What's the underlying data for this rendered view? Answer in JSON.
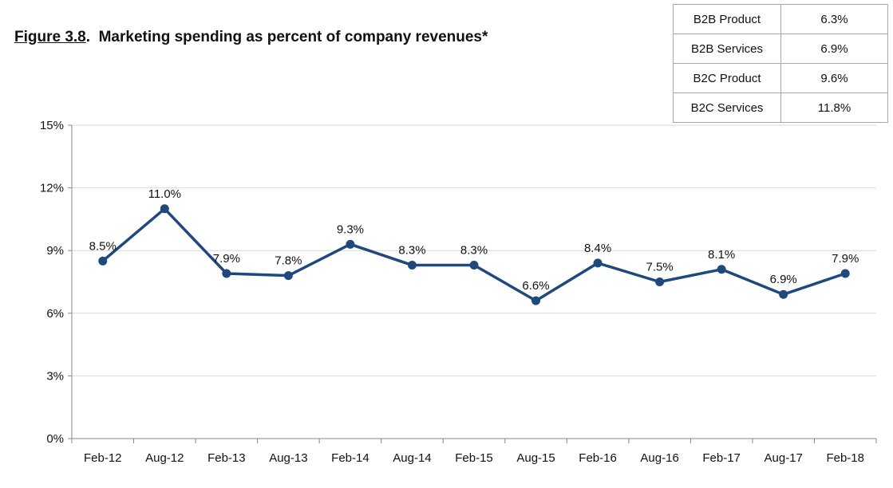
{
  "title": {
    "figure_number": "Figure 3.8",
    "separator": ".",
    "text": "Marketing spending as percent of company revenues*"
  },
  "summary_table": [
    {
      "label": "B2B Product",
      "value": "6.3%"
    },
    {
      "label": "B2B Services",
      "value": "6.9%"
    },
    {
      "label": "B2C Product",
      "value": "9.6%"
    },
    {
      "label": "B2C Services",
      "value": "11.8%"
    }
  ],
  "colors": {
    "series": "#1f497d",
    "grid": "#d9d9d9",
    "axis": "#888888"
  },
  "chart_data": {
    "type": "line",
    "x": [
      "Feb-12",
      "Aug-12",
      "Feb-13",
      "Aug-13",
      "Feb-14",
      "Aug-14",
      "Feb-15",
      "Aug-15",
      "Feb-16",
      "Aug-16",
      "Feb-17",
      "Aug-17",
      "Feb-18"
    ],
    "series": [
      {
        "values": [
          8.5,
          11.0,
          7.9,
          7.8,
          9.3,
          8.3,
          8.3,
          6.6,
          8.4,
          7.5,
          8.1,
          6.9,
          7.9
        ],
        "labels": [
          "8.5%",
          "11.0%",
          "7.9%",
          "7.8%",
          "9.3%",
          "8.3%",
          "8.3%",
          "6.6%",
          "8.4%",
          "7.5%",
          "8.1%",
          "6.9%",
          "7.9%"
        ]
      }
    ],
    "ylim": [
      0,
      15
    ],
    "yticks": [
      0,
      3,
      6,
      9,
      12,
      15
    ],
    "ytick_labels": [
      "0%",
      "3%",
      "6%",
      "9%",
      "12%",
      "15%"
    ],
    "grid": true,
    "xlabel": "",
    "ylabel": ""
  }
}
